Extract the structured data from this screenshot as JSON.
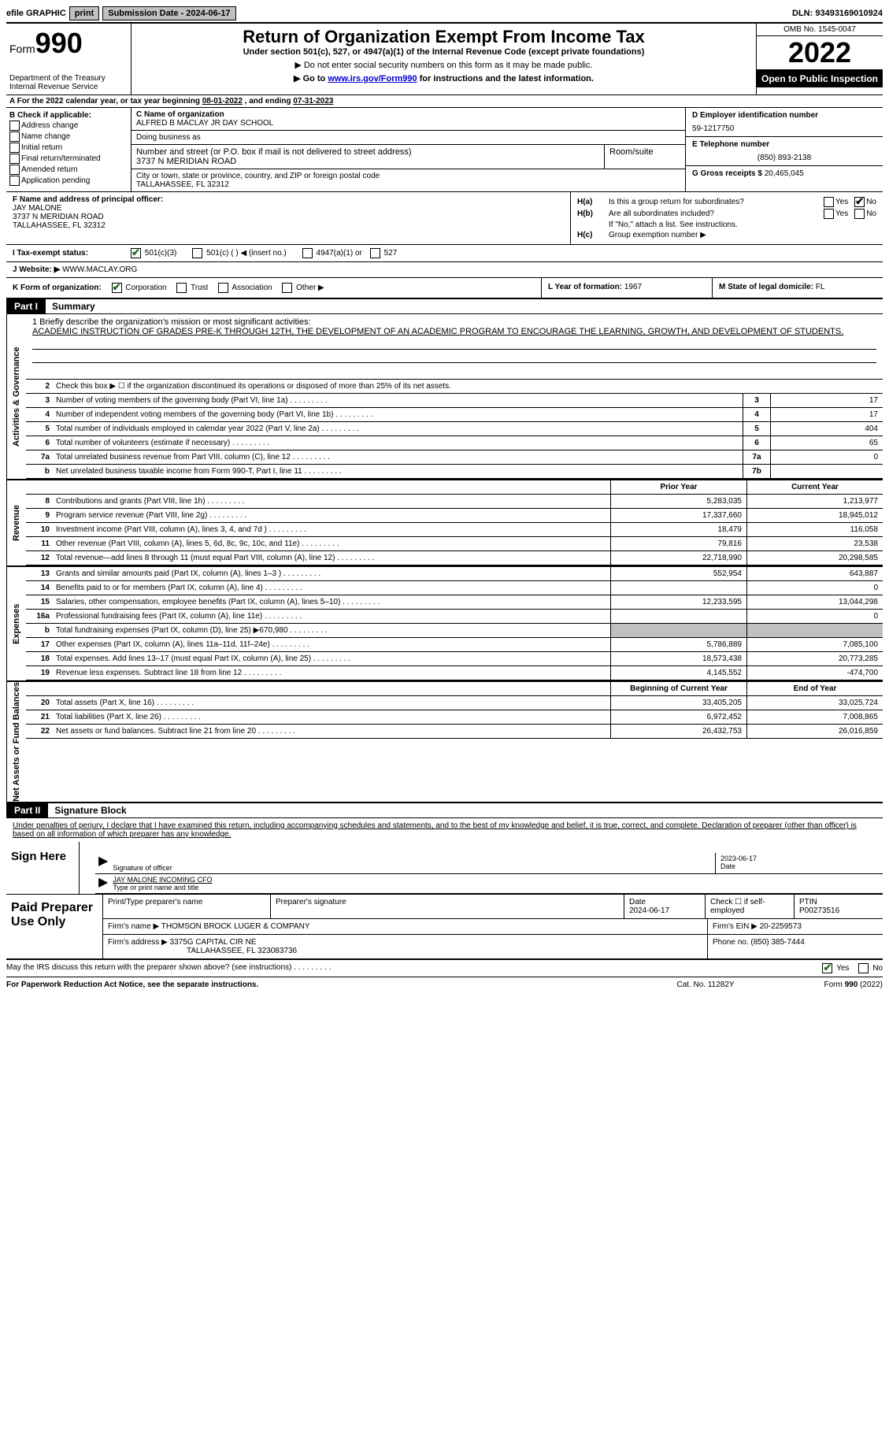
{
  "top": {
    "efile": "efile GRAPHIC",
    "print": "print",
    "subdate_lbl": "Submission Date - ",
    "subdate": "2024-06-17",
    "dln_lbl": "DLN: ",
    "dln": "93493169010924"
  },
  "header": {
    "form_word": "Form",
    "form_num": "990",
    "dept": "Department of the Treasury",
    "service": "Internal Revenue Service",
    "title": "Return of Organization Exempt From Income Tax",
    "sub1": "Under section 501(c), 527, or 4947(a)(1) of the Internal Revenue Code (except private foundations)",
    "sub2": "▶ Do not enter social security numbers on this form as it may be made public.",
    "sub3_pre": "▶ Go to ",
    "sub3_link": "www.irs.gov/Form990",
    "sub3_post": " for instructions and the latest information.",
    "omb": "OMB No. 1545-0047",
    "year": "2022",
    "open": "Open to Public Inspection"
  },
  "rowA": {
    "pre": "A For the 2022 calendar year, or tax year beginning ",
    "begin": "08-01-2022",
    "mid": "   , and ending ",
    "end": "07-31-2023"
  },
  "colB": {
    "hdr": "B Check if applicable:",
    "opts": [
      "Address change",
      "Name change",
      "Initial return",
      "Final return/terminated",
      "Amended return",
      "Application pending"
    ]
  },
  "colC": {
    "name_lbl": "C Name of organization",
    "name": "ALFRED B MACLAY JR DAY SCHOOL",
    "dba_lbl": "Doing business as",
    "street_lbl": "Number and street (or P.O. box if mail is not delivered to street address)",
    "street": "3737 N MERIDIAN ROAD",
    "suite_lbl": "Room/suite",
    "city_lbl": "City or town, state or province, country, and ZIP or foreign postal code",
    "city": "TALLAHASSEE, FL  32312"
  },
  "colDE": {
    "d_lbl": "D Employer identification number",
    "ein": "59-1217750",
    "e_lbl": "E Telephone number",
    "phone": "(850) 893-2138",
    "g_lbl": "G Gross receipts $ ",
    "gross": "20,465,045"
  },
  "rowF": {
    "lbl": "F Name and address of principal officer:",
    "name": "JAY MALONE",
    "addr1": "3737 N MERIDIAN ROAD",
    "addr2": "TALLAHASSEE, FL  32312"
  },
  "rowH": {
    "ha": "H(a)",
    "ha_txt": "Is this a group return for subordinates?",
    "hb": "H(b)",
    "hb_txt": "Are all subordinates included?",
    "hb_note": "If \"No,\" attach a list. See instructions.",
    "hc": "H(c)",
    "hc_txt": "Group exemption number ▶",
    "yes": "Yes",
    "no": "No"
  },
  "rowI": {
    "lbl": "I    Tax-exempt status:",
    "o1": "501(c)(3)",
    "o2": "501(c) (   ) ◀ (insert no.)",
    "o3": "4947(a)(1) or",
    "o4": "527"
  },
  "rowJ": {
    "lbl": "J   Website: ▶  ",
    "val": "WWW.MACLAY.ORG"
  },
  "rowK": {
    "lbl": "K Form of organization:",
    "o1": "Corporation",
    "o2": "Trust",
    "o3": "Association",
    "o4": "Other ▶",
    "L": "L Year of formation: ",
    "Lval": "1967",
    "M": "M State of legal domicile: ",
    "Mval": "FL"
  },
  "part1": {
    "tag": "Part I",
    "title": "Summary"
  },
  "summary": {
    "vlab_act": "Activities & Governance",
    "vlab_rev": "Revenue",
    "vlab_exp": "Expenses",
    "vlab_net": "Net Assets or Fund Balances",
    "l1_lbl": "1   Briefly describe the organization's mission or most significant activities:",
    "l1_txt": "ACADEMIC INSTRUCTION OF GRADES PRE-K THROUGH 12TH, THE DEVELOPMENT OF AN ACADEMIC PROGRAM TO ENCOURAGE THE LEARNING, GROWTH, AND DEVELOPMENT OF STUDENTS.",
    "l2": "Check this box ▶ ☐  if the organization discontinued its operations or disposed of more than 25% of its net assets.",
    "rows_act": [
      {
        "n": "3",
        "t": "Number of voting members of the governing body (Part VI, line 1a)",
        "box": "3",
        "v": "17"
      },
      {
        "n": "4",
        "t": "Number of independent voting members of the governing body (Part VI, line 1b)",
        "box": "4",
        "v": "17"
      },
      {
        "n": "5",
        "t": "Total number of individuals employed in calendar year 2022 (Part V, line 2a)",
        "box": "5",
        "v": "404"
      },
      {
        "n": "6",
        "t": "Total number of volunteers (estimate if necessary)",
        "box": "6",
        "v": "65"
      },
      {
        "n": "7a",
        "t": "Total unrelated business revenue from Part VIII, column (C), line 12",
        "box": "7a",
        "v": "0"
      },
      {
        "n": "b",
        "t": "Net unrelated business taxable income from Form 990-T, Part I, line 11",
        "box": "7b",
        "v": ""
      }
    ],
    "hdr_prior": "Prior Year",
    "hdr_curr": "Current Year",
    "rows_rev": [
      {
        "n": "8",
        "t": "Contributions and grants (Part VIII, line 1h)",
        "p": "5,283,035",
        "c": "1,213,977"
      },
      {
        "n": "9",
        "t": "Program service revenue (Part VIII, line 2g)",
        "p": "17,337,660",
        "c": "18,945,012"
      },
      {
        "n": "10",
        "t": "Investment income (Part VIII, column (A), lines 3, 4, and 7d )",
        "p": "18,479",
        "c": "116,058"
      },
      {
        "n": "11",
        "t": "Other revenue (Part VIII, column (A), lines 5, 6d, 8c, 9c, 10c, and 11e)",
        "p": "79,816",
        "c": "23,538"
      },
      {
        "n": "12",
        "t": "Total revenue—add lines 8 through 11 (must equal Part VIII, column (A), line 12)",
        "p": "22,718,990",
        "c": "20,298,585"
      }
    ],
    "rows_exp": [
      {
        "n": "13",
        "t": "Grants and similar amounts paid (Part IX, column (A), lines 1–3 )",
        "p": "552,954",
        "c": "643,887"
      },
      {
        "n": "14",
        "t": "Benefits paid to or for members (Part IX, column (A), line 4)",
        "p": "",
        "c": "0"
      },
      {
        "n": "15",
        "t": "Salaries, other compensation, employee benefits (Part IX, column (A), lines 5–10)",
        "p": "12,233,595",
        "c": "13,044,298"
      },
      {
        "n": "16a",
        "t": "Professional fundraising fees (Part IX, column (A), line 11e)",
        "p": "",
        "c": "0"
      },
      {
        "n": "b",
        "t": "Total fundraising expenses (Part IX, column (D), line 25) ▶670,980",
        "p": "shade",
        "c": "shade"
      },
      {
        "n": "17",
        "t": "Other expenses (Part IX, column (A), lines 11a–11d, 11f–24e)",
        "p": "5,786,889",
        "c": "7,085,100"
      },
      {
        "n": "18",
        "t": "Total expenses. Add lines 13–17 (must equal Part IX, column (A), line 25)",
        "p": "18,573,438",
        "c": "20,773,285"
      },
      {
        "n": "19",
        "t": "Revenue less expenses. Subtract line 18 from line 12",
        "p": "4,145,552",
        "c": "-474,700"
      }
    ],
    "hdr_beg": "Beginning of Current Year",
    "hdr_end": "End of Year",
    "rows_net": [
      {
        "n": "20",
        "t": "Total assets (Part X, line 16)",
        "p": "33,405,205",
        "c": "33,025,724"
      },
      {
        "n": "21",
        "t": "Total liabilities (Part X, line 26)",
        "p": "6,972,452",
        "c": "7,008,865"
      },
      {
        "n": "22",
        "t": "Net assets or fund balances. Subtract line 21 from line 20",
        "p": "26,432,753",
        "c": "26,016,859"
      }
    ]
  },
  "part2": {
    "tag": "Part II",
    "title": "Signature Block",
    "decl": "Under penalties of perjury, I declare that I have examined this return, including accompanying schedules and statements, and to the best of my knowledge and belief, it is true, correct, and complete. Declaration of preparer (other than officer) is based on all information of which preparer has any knowledge."
  },
  "sign": {
    "lbl": "Sign Here",
    "sig_lbl": "Signature of officer",
    "sig_date": "2023-06-17",
    "date_lbl": "Date",
    "name": "JAY MALONE INCOMING CFO",
    "name_lbl": "Type or print name and title"
  },
  "prep": {
    "lbl": "Paid Preparer Use Only",
    "h1": "Print/Type preparer's name",
    "h2": "Preparer's signature",
    "h3": "Date",
    "h3v": "2024-06-17",
    "h4": "Check ☐ if self-employed",
    "h5": "PTIN",
    "h5v": "P00273516",
    "firm_lbl": "Firm's name    ▶ ",
    "firm": "THOMSON BROCK LUGER & COMPANY",
    "fein_lbl": "Firm's EIN ▶ ",
    "fein": "20-2259573",
    "addr_lbl": "Firm's address ▶ ",
    "addr1": "3375G CAPITAL CIR NE",
    "addr2": "TALLAHASSEE, FL  323083736",
    "phone_lbl": "Phone no. ",
    "phone": "(850) 385-7444"
  },
  "footer": {
    "discuss": "May the IRS discuss this return with the preparer shown above? (see instructions)",
    "yes": "Yes",
    "no": "No",
    "pra": "For Paperwork Reduction Act Notice, see the separate instructions.",
    "cat": "Cat. No. 11282Y",
    "form": "Form 990 (2022)"
  }
}
